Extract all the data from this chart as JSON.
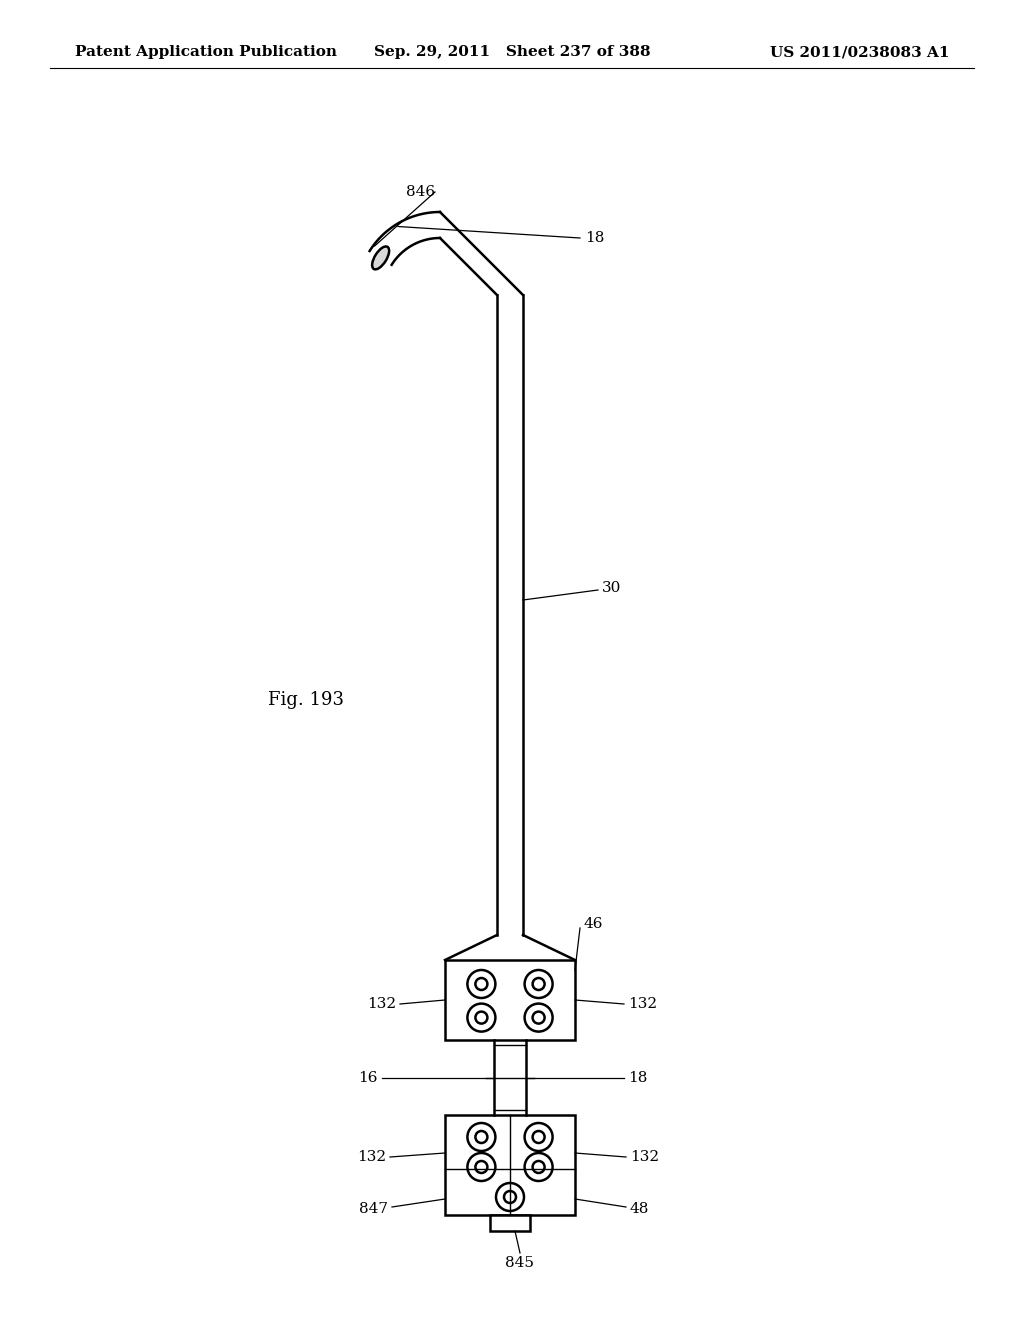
{
  "title_left": "Patent Application Publication",
  "title_center": "Sep. 29, 2011   Sheet 237 of 388",
  "title_right": "US 2011/0238083 A1",
  "fig_label": "Fig. 193",
  "background_color": "#ffffff",
  "line_color": "#000000",
  "annotation_fontsize": 11,
  "header_fontsize": 11,
  "fig_label_fontsize": 13
}
